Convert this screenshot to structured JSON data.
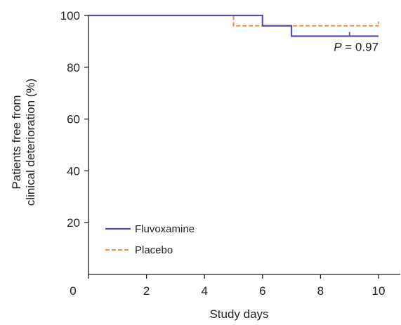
{
  "chart_data": {
    "type": "line",
    "step": true,
    "xlabel": "Study days",
    "ylabel_lines": [
      "Patients free from",
      "clinical deterioration (%)"
    ],
    "xlim": [
      0,
      10
    ],
    "ylim": [
      0,
      100
    ],
    "x_ticks": [
      0,
      2,
      4,
      6,
      8,
      10
    ],
    "y_ticks": [
      20,
      40,
      60,
      80,
      100
    ],
    "origin_label": "0",
    "grid": false,
    "legend_position": "bottom-left",
    "series": [
      {
        "name": "Fluvoxamine",
        "color": "#5b4ca8",
        "style": "solid",
        "x": [
          0,
          6,
          6,
          7,
          7,
          10
        ],
        "y": [
          100,
          100,
          96,
          96,
          92,
          92
        ],
        "censored": [
          {
            "x": 9,
            "y": 92
          }
        ]
      },
      {
        "name": "Placebo",
        "color": "#f08a4b",
        "style": "dashed",
        "x": [
          0,
          5,
          5,
          10
        ],
        "y": [
          100,
          100,
          96,
          96
        ],
        "censored": [
          {
            "x": 10,
            "y": 96
          }
        ]
      }
    ],
    "annotation": {
      "italic_part": "P",
      "rest": " = 0.97",
      "x": 10,
      "y": 88
    },
    "axis_color": "#231f20"
  }
}
